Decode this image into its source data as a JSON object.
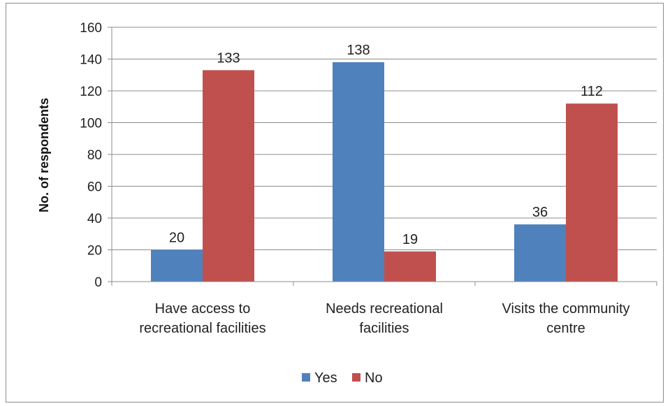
{
  "chart_data": {
    "type": "bar",
    "categories": [
      [
        "Have access  to",
        "recreational facilities"
      ],
      [
        "Needs recreational",
        "facilities"
      ],
      [
        "Visits the  community",
        "centre"
      ]
    ],
    "series": [
      {
        "name": "Yes",
        "color": "#4f81bd",
        "values": [
          20,
          138,
          36
        ]
      },
      {
        "name": "No",
        "color": "#c0504d",
        "values": [
          133,
          19,
          112
        ]
      }
    ],
    "ylabel": "No. of respondents",
    "ylim": [
      0,
      160
    ],
    "yticks": [
      0,
      20,
      40,
      60,
      80,
      100,
      120,
      140,
      160
    ],
    "grid": true,
    "legend_position": "bottom"
  }
}
